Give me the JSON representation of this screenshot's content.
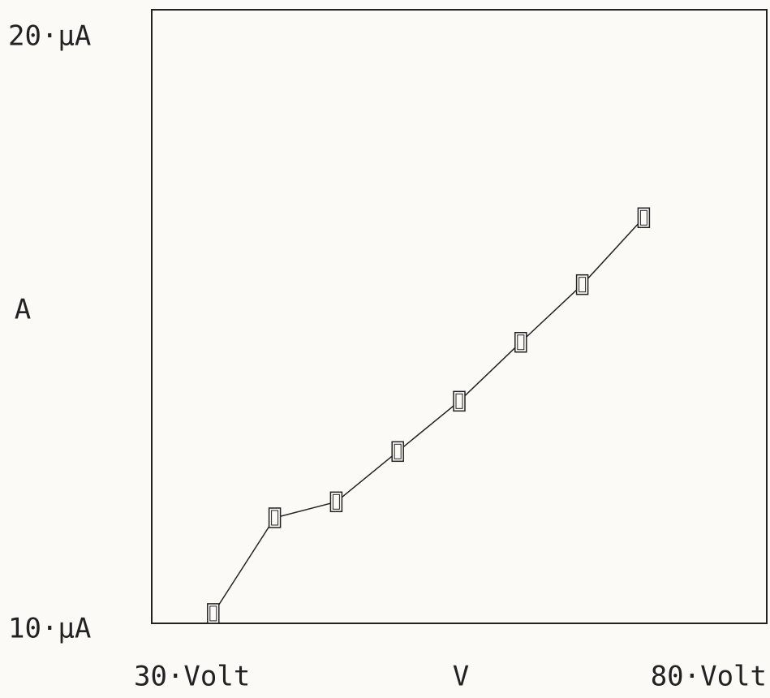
{
  "chart_data": {
    "type": "line",
    "x_label": "V",
    "y_label": "A",
    "x": [
      35,
      40,
      45,
      50,
      55,
      60,
      65,
      70
    ],
    "series": [
      {
        "color": "#222222",
        "values": [
          10.16,
          11.72,
          11.98,
          12.8,
          13.62,
          14.58,
          15.52,
          16.61
        ]
      }
    ],
    "xlim": [
      30,
      80
    ],
    "xticks": [
      {
        "value": 30,
        "label": "30·Volt"
      },
      {
        "value": 80,
        "label": "80·Volt"
      }
    ],
    "ylim": [
      10,
      20
    ],
    "yticks": [
      {
        "value": 10,
        "label": "10·µA"
      },
      {
        "value": 20,
        "label": "20·µA"
      }
    ]
  }
}
